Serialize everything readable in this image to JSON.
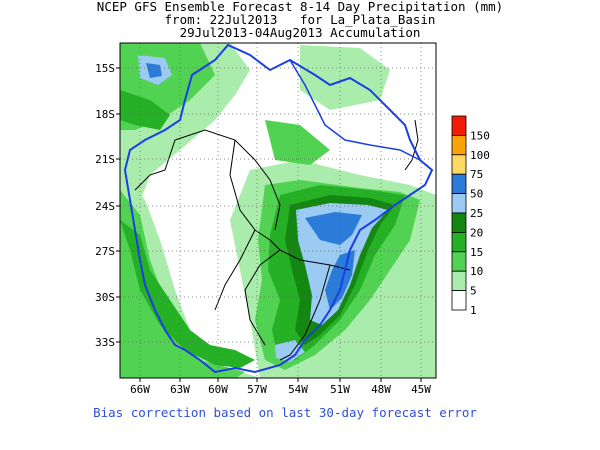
{
  "title": {
    "line1": "NCEP GFS Ensemble Forecast 8-14 Day Precipitation (mm)",
    "line2": "from: 22Jul2013   for La_Plata_Basin",
    "line3": "29Jul2013-04Aug2013 Accumulation"
  },
  "footer": "Bias correction based on last 30-day forecast error",
  "axes": {
    "lat_labels": [
      "15S",
      "18S",
      "21S",
      "24S",
      "27S",
      "30S",
      "33S"
    ],
    "lon_labels": [
      "66W",
      "63W",
      "60W",
      "57W",
      "54W",
      "51W",
      "48W",
      "45W"
    ]
  },
  "legend": {
    "labels": [
      "150",
      "100",
      "75",
      "50",
      "25",
      "20",
      "15",
      "10",
      "5",
      "1"
    ],
    "colors": [
      "#f01c08",
      "#fba20a",
      "#fdd962",
      "#2b7cd8",
      "#9bcaf3",
      "#138712",
      "#25b025",
      "#52d252",
      "#a9ecab",
      "#ffffff"
    ]
  },
  "colors": {
    "basin_outline": "#1a3ee8",
    "political_border": "#000000",
    "footer_text": "#3050d8"
  }
}
